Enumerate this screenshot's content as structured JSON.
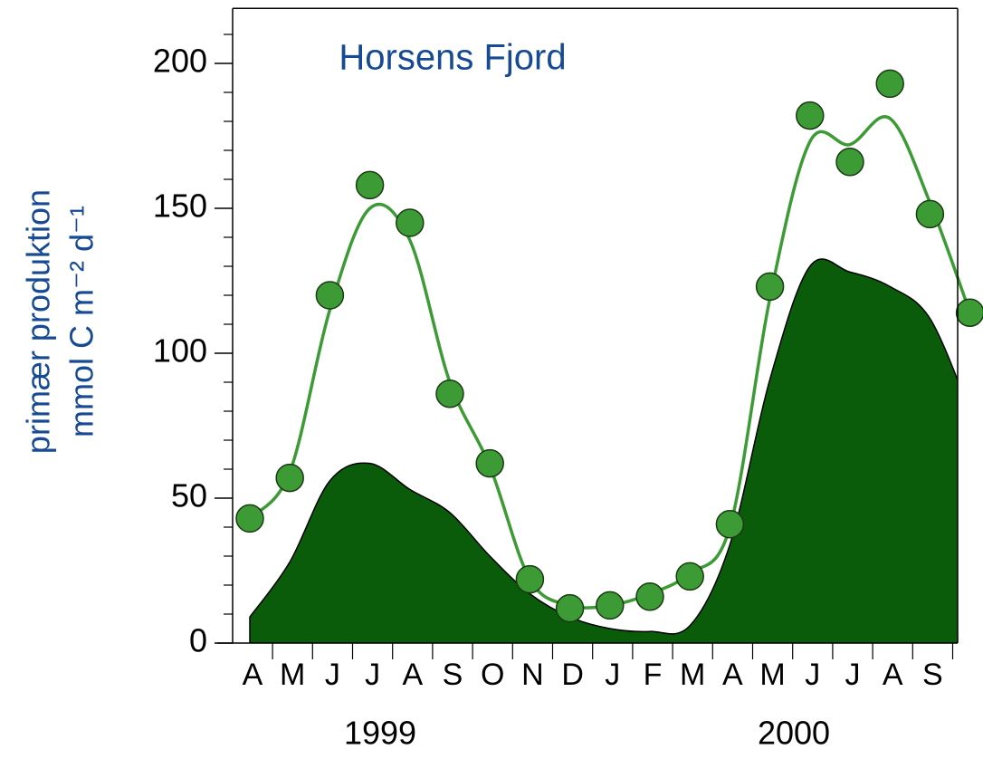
{
  "chart_data": {
    "type": "line",
    "title": "Horsens Fjord",
    "ylabel": [
      "primær produktion",
      "mmol C m⁻² d⁻¹"
    ],
    "annotations": [
      "1999",
      "2000"
    ],
    "categories": [
      "A",
      "M",
      "J",
      "J",
      "A",
      "S",
      "O",
      "N",
      "D",
      "J",
      "F",
      "M",
      "A",
      "M",
      "J",
      "J",
      "A",
      "S",
      null
    ],
    "series": [
      {
        "kind": "area",
        "color": "#0a5c0a",
        "values": [
          9,
          28,
          56,
          62,
          53,
          45,
          30,
          17,
          9,
          5,
          4,
          6,
          34,
          91,
          130,
          128,
          123,
          112,
          80
        ]
      },
      {
        "kind": "line",
        "color": "#3d9b35",
        "values": [
          43,
          59,
          115,
          150,
          139,
          90,
          61,
          22,
          13,
          13,
          17,
          24,
          40,
          119,
          173,
          172,
          181,
          152,
          114
        ]
      },
      {
        "kind": "scatter",
        "color": "#3d9b35",
        "values": [
          43,
          57,
          120,
          158,
          145,
          86,
          62,
          22,
          12,
          13,
          16,
          23,
          41,
          123,
          182,
          166,
          193,
          148,
          114
        ]
      }
    ],
    "ylim": [
      0,
      219
    ],
    "yticks": [
      0,
      50,
      100,
      150,
      200
    ],
    "yminor_ticks": [
      10,
      20,
      30,
      40,
      60,
      70,
      80,
      90,
      110,
      120,
      130,
      140,
      160,
      170,
      180,
      190,
      210
    ]
  }
}
